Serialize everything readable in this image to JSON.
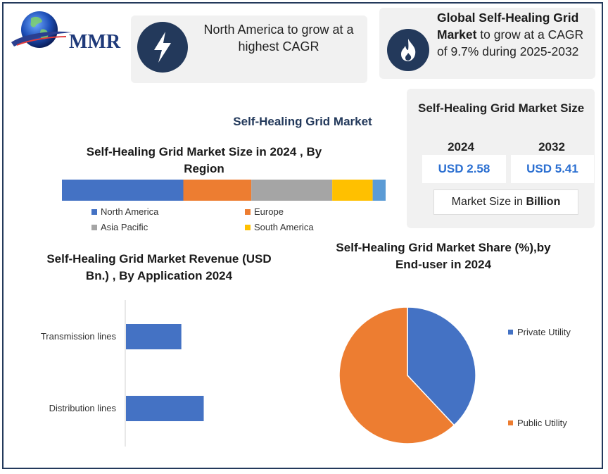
{
  "brand": {
    "name": "MMR"
  },
  "highlights": {
    "north_america": "North America to grow at a highest CAGR",
    "global_bold": "Global Self-Healing Grid Market",
    "global_rest": " to grow at a CAGR of 9.7% during 2025-2032"
  },
  "market_size": {
    "title": "Self-Healing Grid Market Size",
    "year_a": "2024",
    "year_b": "2032",
    "value_a": "USD 2.58",
    "value_b": "USD 5.41",
    "unit_prefix": "Market Size in ",
    "unit_bold": "Billion"
  },
  "colors": {
    "navy": "#23395b",
    "blue": "#4472c4",
    "orange": "#ed7d31",
    "gray": "#a5a5a5",
    "yellow": "#ffc000",
    "light_blue": "#5b9bd5",
    "value_blue": "#2b6fd1"
  },
  "icons": {
    "north_america": "lightning-bolt-icon",
    "global": "flame-icon"
  },
  "chart_data": [
    {
      "type": "bar",
      "orientation": "horizontal-stacked",
      "title": "Self-Healing Grid Market Size in 2024 , By Region",
      "series": [
        {
          "name": "North America",
          "values": [
            37.5
          ],
          "color": "#4472c4"
        },
        {
          "name": "Europe",
          "values": [
            21
          ],
          "color": "#ed7d31"
        },
        {
          "name": "Asia Pacific",
          "values": [
            25
          ],
          "color": "#a5a5a5"
        },
        {
          "name": "South America",
          "values": [
            12.5
          ],
          "color": "#ffc000"
        },
        {
          "values": [
            4
          ],
          "color": "#5b9bd5"
        }
      ],
      "legend_position": "bottom"
    },
    {
      "type": "bar",
      "orientation": "horizontal",
      "title": "Self-Healing Grid Market Revenue (USD Bn.)  , By Application 2024",
      "categories": [
        "Transmission lines",
        "Distribution lines"
      ],
      "values": [
        0.94,
        1.32
      ],
      "xlim": [
        0,
        2.58
      ],
      "grid": false,
      "color": "#4472c4"
    },
    {
      "type": "pie",
      "title": "Self-Healing Grid Market Share (%),by End-user in 2024",
      "labels": [
        "Private Utility",
        "Public Utility"
      ],
      "values": [
        38,
        62
      ],
      "colors": [
        "#4472c4",
        "#ed7d31"
      ],
      "legend_position": "right"
    }
  ]
}
